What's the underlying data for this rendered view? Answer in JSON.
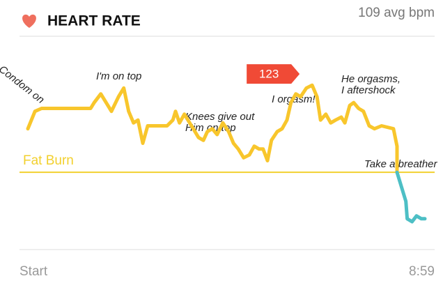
{
  "chart_data": {
    "type": "line",
    "title": "HEART RATE",
    "subtitle": "109 avg bpm",
    "x": [
      0,
      0.16,
      0.31,
      1.42,
      1.5,
      1.65,
      1.81,
      1.89,
      2.05,
      2.17,
      2.28,
      2.39,
      2.49,
      2.6,
      2.71,
      3.15,
      3.28,
      3.34,
      3.43,
      3.54,
      3.7,
      3.86,
      3.97,
      4.06,
      4.17,
      4.28,
      4.41,
      4.54,
      4.65,
      4.76,
      4.88,
      5.01,
      5.12,
      5.23,
      5.32,
      5.42,
      5.51,
      5.64,
      5.75,
      5.86,
      5.95,
      6.06,
      6.17,
      6.3,
      6.43,
      6.54,
      6.62,
      6.74,
      6.85,
      6.96,
      7.09,
      7.17,
      7.28,
      7.37,
      7.48,
      7.59,
      7.72,
      7.84,
      8.0,
      8.27,
      8.35,
      8.35,
      8.55,
      8.58,
      8.69,
      8.79,
      8.9,
      8.98
    ],
    "series": [
      {
        "color": "#f8c62c",
        "values": [
          108,
          114,
          115,
          115,
          117,
          120,
          116,
          114,
          119,
          122,
          114,
          110,
          111,
          103,
          109,
          109,
          111,
          114,
          110,
          113,
          109,
          105,
          104,
          107,
          108,
          106,
          110,
          107,
          103,
          101,
          98,
          99,
          102,
          101,
          101,
          97,
          104,
          107,
          108,
          111,
          117,
          120,
          119,
          122,
          123,
          119,
          111,
          113,
          110,
          111,
          112,
          110,
          116,
          117,
          115,
          114,
          109,
          108,
          109,
          108,
          102,
          93,
          null,
          null,
          null,
          null,
          null,
          null
        ]
      },
      {
        "color": "#4dbfc5",
        "values": [
          null,
          null,
          null,
          null,
          null,
          null,
          null,
          null,
          null,
          null,
          null,
          null,
          null,
          null,
          null,
          null,
          null,
          null,
          null,
          null,
          null,
          null,
          null,
          null,
          null,
          null,
          null,
          null,
          null,
          null,
          null,
          null,
          null,
          null,
          null,
          null,
          null,
          null,
          null,
          null,
          null,
          null,
          null,
          null,
          null,
          null,
          null,
          null,
          null,
          null,
          null,
          null,
          null,
          null,
          null,
          null,
          null,
          null,
          null,
          null,
          null,
          93,
          83,
          77,
          76,
          78,
          77,
          77
        ]
      }
    ],
    "threshold": {
      "label": "Fat Burn",
      "value": 93,
      "color": "#f2d02e"
    },
    "xlim": [
      0,
      8.98
    ],
    "ylim": [
      70,
      130
    ],
    "xticks": [
      {
        "value": 0,
        "label": "Start"
      },
      {
        "value": 8.98,
        "label": "8:59"
      }
    ],
    "annotations": [
      "Condom on",
      "I'm on top",
      "Knees give out",
      "Him on top",
      "I orgasm!",
      "He orgasms,",
      "I aftershock",
      "Take a breather"
    ],
    "callout_color": "#f04a36"
  }
}
